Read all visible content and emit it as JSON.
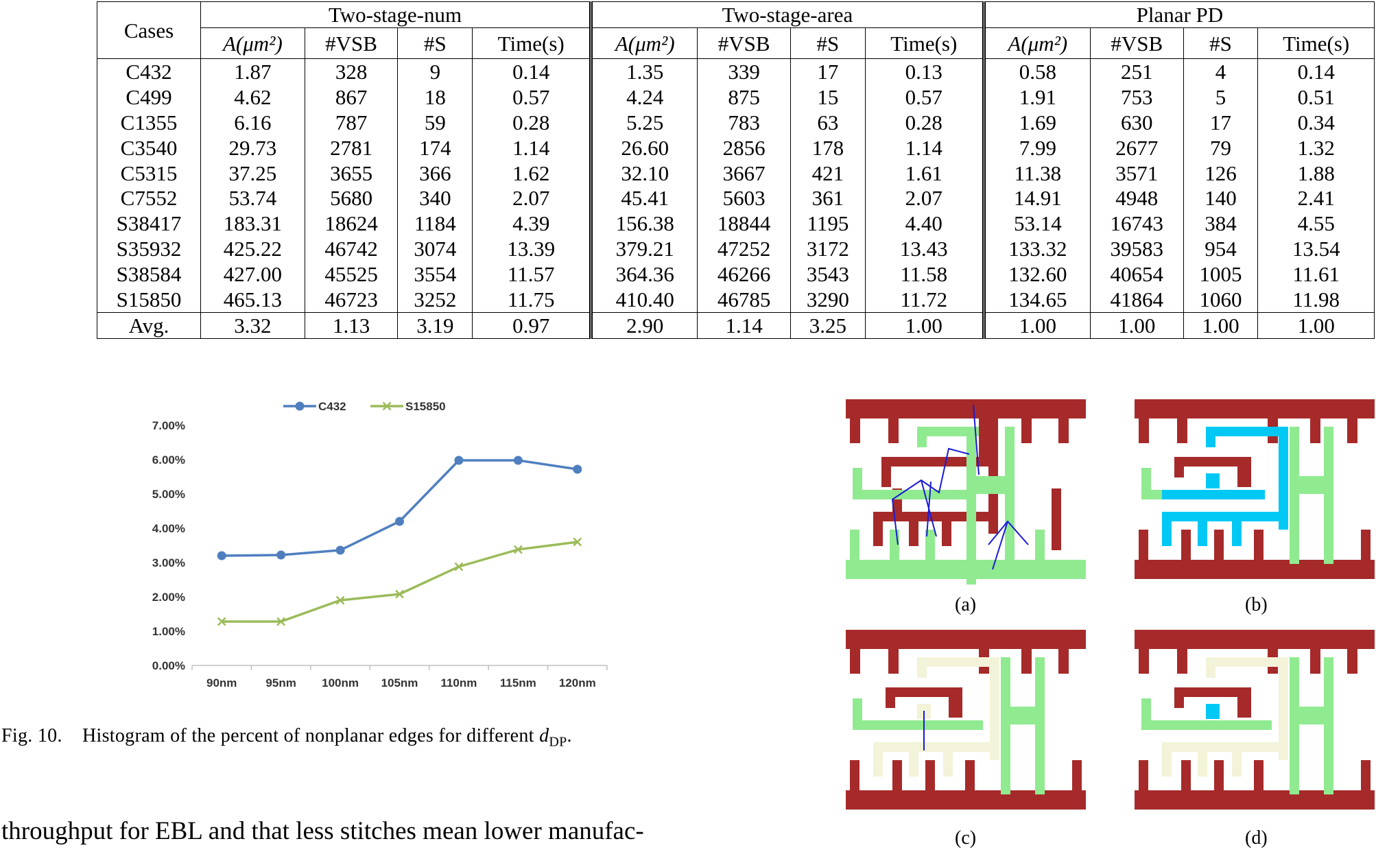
{
  "table": {
    "groups": [
      "Two-stage-num",
      "Two-stage-area",
      "Planar PD"
    ],
    "cases_header": "Cases",
    "subheaders": [
      "A(μm²)",
      "#VSB",
      "#S",
      "Time(s)"
    ],
    "rows": [
      [
        "C432",
        "1.87",
        "328",
        "9",
        "0.14",
        "1.35",
        "339",
        "17",
        "0.13",
        "0.58",
        "251",
        "4",
        "0.14"
      ],
      [
        "C499",
        "4.62",
        "867",
        "18",
        "0.57",
        "4.24",
        "875",
        "15",
        "0.57",
        "1.91",
        "753",
        "5",
        "0.51"
      ],
      [
        "C1355",
        "6.16",
        "787",
        "59",
        "0.28",
        "5.25",
        "783",
        "63",
        "0.28",
        "1.69",
        "630",
        "17",
        "0.34"
      ],
      [
        "C3540",
        "29.73",
        "2781",
        "174",
        "1.14",
        "26.60",
        "2856",
        "178",
        "1.14",
        "7.99",
        "2677",
        "79",
        "1.32"
      ],
      [
        "C5315",
        "37.25",
        "3655",
        "366",
        "1.62",
        "32.10",
        "3667",
        "421",
        "1.61",
        "11.38",
        "3571",
        "126",
        "1.88"
      ],
      [
        "C7552",
        "53.74",
        "5680",
        "340",
        "2.07",
        "45.41",
        "5603",
        "361",
        "2.07",
        "14.91",
        "4948",
        "140",
        "2.41"
      ],
      [
        "S38417",
        "183.31",
        "18624",
        "1184",
        "4.39",
        "156.38",
        "18844",
        "1195",
        "4.40",
        "53.14",
        "16743",
        "384",
        "4.55"
      ],
      [
        "S35932",
        "425.22",
        "46742",
        "3074",
        "13.39",
        "379.21",
        "47252",
        "3172",
        "13.43",
        "133.32",
        "39583",
        "954",
        "13.54"
      ],
      [
        "S38584",
        "427.00",
        "45525",
        "3554",
        "11.57",
        "364.36",
        "46266",
        "3543",
        "11.58",
        "132.60",
        "40654",
        "1005",
        "11.61"
      ],
      [
        "S15850",
        "465.13",
        "46723",
        "3252",
        "11.75",
        "410.40",
        "46785",
        "3290",
        "11.72",
        "134.65",
        "41864",
        "1060",
        "11.98"
      ]
    ],
    "avg": [
      "Avg.",
      "3.32",
      "1.13",
      "3.19",
      "0.97",
      "2.90",
      "1.14",
      "3.25",
      "1.00",
      "1.00",
      "1.00",
      "1.00",
      "1.00"
    ]
  },
  "chart_data": {
    "type": "line",
    "categories": [
      "90nm",
      "95nm",
      "100nm",
      "105nm",
      "110nm",
      "115nm",
      "120nm"
    ],
    "series": [
      {
        "name": "C432",
        "values": [
          3.2,
          3.22,
          3.36,
          4.2,
          5.98,
          5.98,
          5.72
        ],
        "color": "#4f7fbf",
        "marker": "circle"
      },
      {
        "name": "S15850",
        "values": [
          1.28,
          1.28,
          1.9,
          2.08,
          2.88,
          3.38,
          3.6
        ],
        "color": "#9bbb59",
        "marker": "x"
      }
    ],
    "yticks": [
      "0.00%",
      "1.00%",
      "2.00%",
      "3.00%",
      "4.00%",
      "5.00%",
      "6.00%",
      "7.00%"
    ],
    "ylim": [
      0,
      7
    ],
    "legend_position": "top",
    "grid": false
  },
  "caption": {
    "fig_label": "Fig. 10.",
    "text": "Histogram of the percent of nonplanar edges for different ",
    "symbol": "d",
    "subscript": "DP",
    "end": "."
  },
  "panels": [
    "(a)",
    "(b)",
    "(c)",
    "(d)"
  ],
  "colors": {
    "dark_red": "#a62a2a",
    "light_green": "#90ea90",
    "cyan": "#00c8f5",
    "cream": "#f3f3d9",
    "stitch_blue": "#1a1ad6"
  },
  "body_text": "throughput for EBL and that less stitches mean lower manufac-"
}
